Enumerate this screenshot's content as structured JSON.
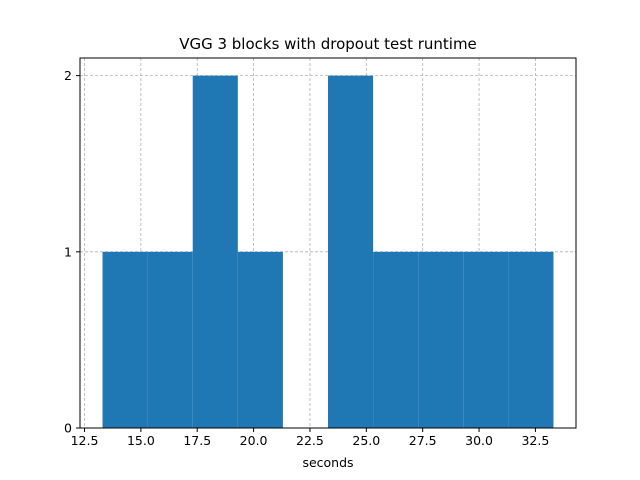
{
  "chart_data": {
    "type": "bar",
    "title": "VGG 3 blocks with dropout test runtime",
    "xlabel": "seconds",
    "ylabel": "",
    "bar_color": "#1f77b4",
    "bins": [
      {
        "x0": 13.3,
        "x1": 15.3,
        "count": 1
      },
      {
        "x0": 15.3,
        "x1": 17.3,
        "count": 1
      },
      {
        "x0": 17.3,
        "x1": 19.3,
        "count": 2
      },
      {
        "x0": 19.3,
        "x1": 21.3,
        "count": 1
      },
      {
        "x0": 21.3,
        "x1": 23.3,
        "count": 0
      },
      {
        "x0": 23.3,
        "x1": 25.3,
        "count": 2
      },
      {
        "x0": 25.3,
        "x1": 27.3,
        "count": 1
      },
      {
        "x0": 27.3,
        "x1": 29.3,
        "count": 1
      },
      {
        "x0": 29.3,
        "x1": 31.3,
        "count": 1
      },
      {
        "x0": 31.3,
        "x1": 33.3,
        "count": 1
      }
    ],
    "xlim": [
      12.3,
      34.3
    ],
    "ylim": [
      0,
      2.1
    ],
    "xticks": [
      12.5,
      15.0,
      17.5,
      20.0,
      22.5,
      25.0,
      27.5,
      30.0,
      32.5
    ],
    "xtick_labels": [
      "12.5",
      "15.0",
      "17.5",
      "20.0",
      "22.5",
      "25.0",
      "27.5",
      "30.0",
      "32.5"
    ],
    "yticks": [
      0,
      1,
      2
    ],
    "ytick_labels": [
      "0",
      "1",
      "2"
    ],
    "grid": true,
    "grid_style": "dashed"
  }
}
